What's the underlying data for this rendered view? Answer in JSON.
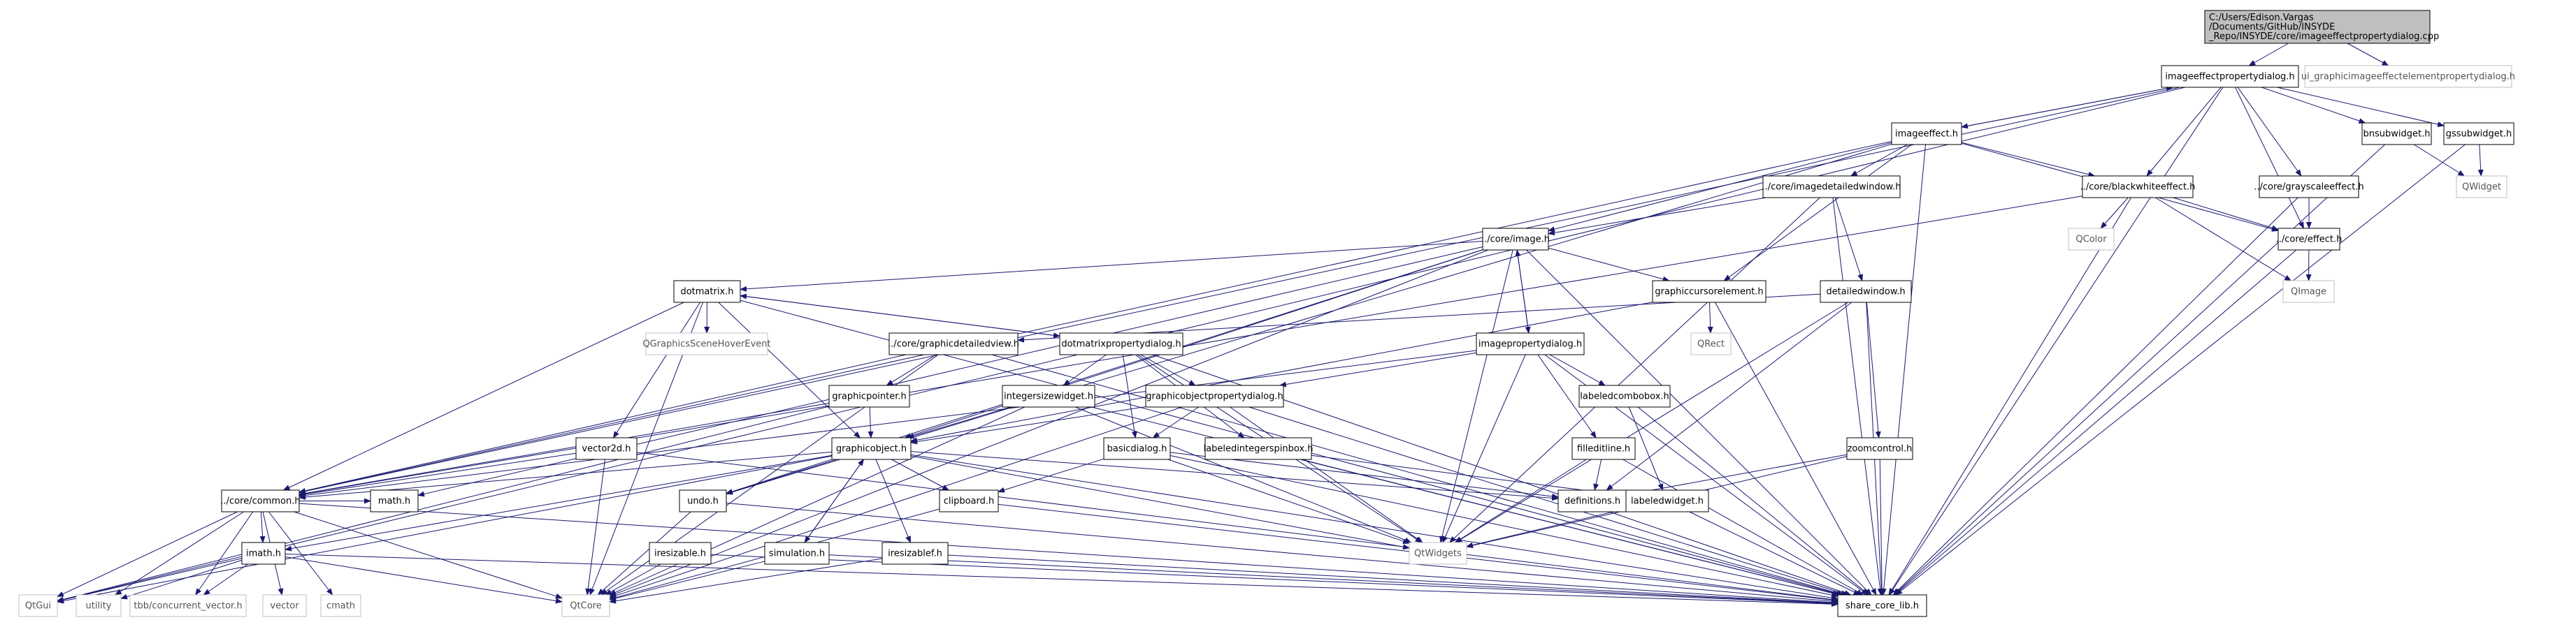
{
  "colors": {
    "edge": "#191970",
    "node_border": "#000000",
    "node_fill": "#ffffff",
    "missing_border": "#bfbfbf",
    "missing_text": "#555555",
    "root_fill": "#bfbfbf"
  },
  "root": {
    "label_lines": [
      "C:/Users/Edison.Vargas",
      "/Documents/GitHub/INSYDE",
      "_Repo/INSYDE/core/imageeffectpropertydialog.cpp"
    ]
  },
  "nodes": {
    "imageeffectpropertydialog_h": "imageeffectpropertydialog.h",
    "ui_h": "ui_graphicimageeffectelementpropertydialog.h",
    "imageeffect_h": "imageeffect.h",
    "bnsubwidget_h": "bnsubwidget.h",
    "gssubwidget_h": "gssubwidget.h",
    "imagedetailedwindow_h": "../core/imagedetailedwindow.h",
    "blackwhiteeffect_h": "../core/blackwhiteeffect.h",
    "grayscaleeffect_h": "../core/grayscaleeffect.h",
    "QWidget": "QWidget",
    "QColor": "QColor",
    "effect_h": "../core/effect.h",
    "image_h": "../core/image.h",
    "QImage": "QImage",
    "dotmatrix_h": "dotmatrix.h",
    "graphiccursorelement_h": "graphiccursorelement.h",
    "detailedwindow_h": "detailedwindow.h",
    "QGraphicsSceneHoverEvent": "QGraphicsSceneHoverEvent",
    "QRect": "QRect",
    "graphicdetailedview_h": "../core/graphicdetailedview.h",
    "dotmatrixpropertydialog_h": "dotmatrixpropertydialog.h",
    "imagepropertydialog_h": "imagepropertydialog.h",
    "graphicpointer_h": "graphicpointer.h",
    "integersizewidget_h": "integersizewidget.h",
    "graphicobjectpropertydialog_h": "graphicobjectpropertydialog.h",
    "labeledcombobox_h": "labeledcombobox.h",
    "vector2d_h": "vector2d.h",
    "graphicobject_h": "graphicobject.h",
    "labeledintegerspinbox_h": "labeledintegerspinbox.h",
    "basicdialog_h": "basicdialog.h",
    "filleditline_h": "filleditline.h",
    "zoomcontrol_h": "zoomcontrol.h",
    "common_h": "../core/common.h",
    "undo_h": "undo.h",
    "clipboard_h": "clipboard.h",
    "definitions_h": "definitions.h",
    "labeledwidget_h": "labeledwidget.h",
    "imath_h": "imath.h",
    "math_h": "math.h",
    "iresizable_h": "iresizable.h",
    "simulation_h": "simulation.h",
    "iresizablef_h": "iresizablef.h",
    "QtWidgets": "QtWidgets",
    "QtGui": "QtGui",
    "utility": "utility",
    "concurrent_vector_h": "tbb/concurrent_vector.h",
    "vector": "vector",
    "cmath": "cmath",
    "QtCore": "QtCore",
    "share_core_lib_h": "share_core_lib.h"
  },
  "edges": [
    [
      "root",
      "imageeffectpropertydialog_h"
    ],
    [
      "root",
      "ui_h"
    ],
    [
      "imageeffectpropertydialog_h",
      "imageeffect_h"
    ],
    [
      "imageeffectpropertydialog_h",
      "bnsubwidget_h"
    ],
    [
      "imageeffectpropertydialog_h",
      "gssubwidget_h"
    ],
    [
      "imageeffectpropertydialog_h",
      "blackwhiteeffect_h"
    ],
    [
      "imageeffectpropertydialog_h",
      "grayscaleeffect_h"
    ],
    [
      "imageeffectpropertydialog_h",
      "effect_h"
    ],
    [
      "imageeffectpropertydialog_h",
      "common_h"
    ],
    [
      "imageeffectpropertydialog_h",
      "QtGui"
    ],
    [
      "imageeffectpropertydialog_h",
      "share_core_lib_h"
    ],
    [
      "imageeffect_h",
      "imageeffectpropertydialog_h"
    ],
    [
      "imageeffect_h",
      "imagedetailedwindow_h"
    ],
    [
      "imageeffect_h",
      "blackwhiteeffect_h"
    ],
    [
      "imageeffect_h",
      "effect_h"
    ],
    [
      "imageeffect_h",
      "image_h"
    ],
    [
      "imageeffect_h",
      "graphiccursorelement_h"
    ],
    [
      "imageeffect_h",
      "graphicobject_h"
    ],
    [
      "imageeffect_h",
      "common_h"
    ],
    [
      "imageeffect_h",
      "share_core_lib_h"
    ],
    [
      "bnsubwidget_h",
      "QWidget"
    ],
    [
      "bnsubwidget_h",
      "share_core_lib_h"
    ],
    [
      "gssubwidget_h",
      "QWidget"
    ],
    [
      "gssubwidget_h",
      "share_core_lib_h"
    ],
    [
      "grayscaleeffect_h",
      "effect_h"
    ],
    [
      "grayscaleeffect_h",
      "share_core_lib_h"
    ],
    [
      "blackwhiteeffect_h",
      "effect_h"
    ],
    [
      "blackwhiteeffect_h",
      "QColor"
    ],
    [
      "blackwhiteeffect_h",
      "QImage"
    ],
    [
      "blackwhiteeffect_h",
      "share_core_lib_h"
    ],
    [
      "blackwhiteeffect_h",
      "common_h"
    ],
    [
      "effect_h",
      "QImage"
    ],
    [
      "effect_h",
      "share_core_lib_h"
    ],
    [
      "imagedetailedwindow_h",
      "image_h"
    ],
    [
      "imagedetailedwindow_h",
      "detailedwindow_h"
    ],
    [
      "imagedetailedwindow_h",
      "QtWidgets"
    ],
    [
      "imagedetailedwindow_h",
      "share_core_lib_h"
    ],
    [
      "image_h",
      "dotmatrix_h"
    ],
    [
      "image_h",
      "graphiccursorelement_h"
    ],
    [
      "image_h",
      "imagepropertydialog_h"
    ],
    [
      "image_h",
      "graphicobject_h"
    ],
    [
      "image_h",
      "QtWidgets"
    ],
    [
      "image_h",
      "share_core_lib_h"
    ],
    [
      "image_h",
      "math_h"
    ],
    [
      "image_h",
      "QtCore"
    ],
    [
      "image_h",
      "undo_h"
    ],
    [
      "dotmatrix_h",
      "QGraphicsSceneHoverEvent"
    ],
    [
      "dotmatrix_h",
      "dotmatrixpropertydialog_h"
    ],
    [
      "dotmatrix_h",
      "graphicobject_h"
    ],
    [
      "dotmatrix_h",
      "common_h"
    ],
    [
      "dotmatrix_h",
      "QtCore"
    ],
    [
      "dotmatrix_h",
      "share_core_lib_h"
    ],
    [
      "dotmatrix_h",
      "vector2d_h"
    ],
    [
      "graphiccursorelement_h",
      "QRect"
    ],
    [
      "graphiccursorelement_h",
      "graphicobject_h"
    ],
    [
      "graphiccursorelement_h",
      "share_core_lib_h"
    ],
    [
      "detailedwindow_h",
      "graphicdetailedview_h"
    ],
    [
      "detailedwindow_h",
      "zoomcontrol_h"
    ],
    [
      "detailedwindow_h",
      "QtWidgets"
    ],
    [
      "detailedwindow_h",
      "share_core_lib_h"
    ],
    [
      "detailedwindow_h",
      "definitions_h"
    ],
    [
      "graphicdetailedview_h",
      "graphicpointer_h"
    ],
    [
      "graphicdetailedview_h",
      "common_h"
    ],
    [
      "graphicdetailedview_h",
      "QtCore"
    ],
    [
      "graphicdetailedview_h",
      "share_core_lib_h"
    ],
    [
      "dotmatrixpropertydialog_h",
      "dotmatrix_h"
    ],
    [
      "dotmatrixpropertydialog_h",
      "integersizewidget_h"
    ],
    [
      "dotmatrixpropertydialog_h",
      "graphicobjectpropertydialog_h"
    ],
    [
      "dotmatrixpropertydialog_h",
      "labeledintegerspinbox_h"
    ],
    [
      "dotmatrixpropertydialog_h",
      "basicdialog_h"
    ],
    [
      "dotmatrixpropertydialog_h",
      "QtWidgets"
    ],
    [
      "dotmatrixpropertydialog_h",
      "share_core_lib_h"
    ],
    [
      "imagepropertydialog_h",
      "image_h"
    ],
    [
      "imagepropertydialog_h",
      "graphicobjectpropertydialog_h"
    ],
    [
      "imagepropertydialog_h",
      "labeledcombobox_h"
    ],
    [
      "imagepropertydialog_h",
      "filleditline_h"
    ],
    [
      "imagepropertydialog_h",
      "QtWidgets"
    ],
    [
      "imagepropertydialog_h",
      "share_core_lib_h"
    ],
    [
      "imagepropertydialog_h",
      "common_h"
    ],
    [
      "graphicpointer_h",
      "graphicobject_h"
    ],
    [
      "graphicpointer_h",
      "common_h"
    ],
    [
      "graphicpointer_h",
      "QtGui"
    ],
    [
      "integersizewidget_h",
      "undo_h"
    ],
    [
      "integersizewidget_h",
      "QtWidgets"
    ],
    [
      "integersizewidget_h",
      "share_core_lib_h"
    ],
    [
      "integersizewidget_h",
      "QtCore"
    ],
    [
      "graphicobjectpropertydialog_h",
      "graphicobject_h"
    ],
    [
      "graphicobjectpropertydialog_h",
      "basicdialog_h"
    ],
    [
      "graphicobjectpropertydialog_h",
      "QtWidgets"
    ],
    [
      "graphicobjectpropertydialog_h",
      "share_core_lib_h"
    ],
    [
      "graphicobjectpropertydialog_h",
      "QtCore"
    ],
    [
      "labeledcombobox_h",
      "labeledwidget_h"
    ],
    [
      "labeledcombobox_h",
      "share_core_lib_h"
    ],
    [
      "labeledintegerspinbox_h",
      "labeledwidget_h"
    ],
    [
      "labeledintegerspinbox_h",
      "share_core_lib_h"
    ],
    [
      "vector2d_h",
      "common_h"
    ],
    [
      "vector2d_h",
      "QtCore"
    ],
    [
      "vector2d_h",
      "share_core_lib_h"
    ],
    [
      "graphicobject_h",
      "common_h"
    ],
    [
      "graphicobject_h",
      "undo_h"
    ],
    [
      "graphicobject_h",
      "clipboard_h"
    ],
    [
      "graphicobject_h",
      "iresizablef_h"
    ],
    [
      "graphicobject_h",
      "simulation_h"
    ],
    [
      "graphicobject_h",
      "definitions_h"
    ],
    [
      "graphicobject_h",
      "QtWidgets"
    ],
    [
      "graphicobject_h",
      "share_core_lib_h"
    ],
    [
      "graphicobject_h",
      "imath_h"
    ],
    [
      "graphicobject_h",
      "QtGui"
    ],
    [
      "basicdialog_h",
      "definitions_h"
    ],
    [
      "basicdialog_h",
      "clipboard_h"
    ],
    [
      "basicdialog_h",
      "QtWidgets"
    ],
    [
      "basicdialog_h",
      "share_core_lib_h"
    ],
    [
      "filleditline_h",
      "definitions_h"
    ],
    [
      "filleditline_h",
      "QtWidgets"
    ],
    [
      "filleditline_h",
      "share_core_lib_h"
    ],
    [
      "zoomcontrol_h",
      "definitions_h"
    ],
    [
      "zoomcontrol_h",
      "QtWidgets"
    ],
    [
      "zoomcontrol_h",
      "share_core_lib_h"
    ],
    [
      "common_h",
      "math_h"
    ],
    [
      "common_h",
      "imath_h"
    ],
    [
      "common_h",
      "QtGui"
    ],
    [
      "common_h",
      "utility"
    ],
    [
      "common_h",
      "concurrent_vector_h"
    ],
    [
      "common_h",
      "vector"
    ],
    [
      "common_h",
      "cmath"
    ],
    [
      "common_h",
      "QtCore"
    ],
    [
      "common_h",
      "share_core_lib_h"
    ],
    [
      "undo_h",
      "QtCore"
    ],
    [
      "undo_h",
      "share_core_lib_h"
    ],
    [
      "clipboard_h",
      "QtCore"
    ],
    [
      "clipboard_h",
      "share_core_lib_h"
    ],
    [
      "labeledwidget_h",
      "QtWidgets"
    ],
    [
      "labeledwidget_h",
      "share_core_lib_h"
    ],
    [
      "imath_h",
      "QtGui"
    ],
    [
      "imath_h",
      "utility"
    ],
    [
      "imath_h",
      "concurrent_vector_h"
    ],
    [
      "imath_h",
      "QtCore"
    ],
    [
      "imath_h",
      "share_core_lib_h"
    ],
    [
      "iresizable_h",
      "QtCore"
    ],
    [
      "iresizable_h",
      "share_core_lib_h"
    ],
    [
      "simulation_h",
      "graphicobject_h"
    ],
    [
      "simulation_h",
      "QtCore"
    ],
    [
      "simulation_h",
      "share_core_lib_h"
    ],
    [
      "iresizablef_h",
      "QtCore"
    ],
    [
      "iresizablef_h",
      "share_core_lib_h"
    ]
  ]
}
